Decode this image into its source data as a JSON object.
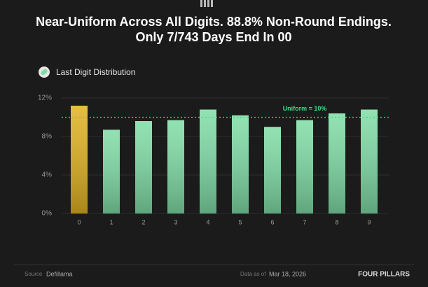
{
  "chart_data": {
    "type": "bar",
    "title_lines": [
      "Near-Uniform Across All Digits. 88.8% Non-Round Endings.",
      "Only 7/743 Days End In 00"
    ],
    "legend_label": "Last Digit Distribution",
    "categories": [
      "0",
      "1",
      "2",
      "3",
      "4",
      "5",
      "6",
      "7",
      "8",
      "9"
    ],
    "values": [
      11.2,
      8.7,
      9.6,
      9.7,
      10.8,
      10.2,
      9.0,
      9.7,
      10.4,
      10.8
    ],
    "colors": [
      "#e0b21f",
      "#7fdca6",
      "#7fdca6",
      "#7fdca6",
      "#7fdca6",
      "#7fdca6",
      "#7fdca6",
      "#7fdca6",
      "#7fdca6",
      "#7fdca6"
    ],
    "ylim": [
      0,
      12
    ],
    "yticks": [
      {
        "value": 0,
        "label": "0%"
      },
      {
        "value": 4,
        "label": "4%"
      },
      {
        "value": 8,
        "label": "8%"
      },
      {
        "value": 12,
        "label": "12%"
      }
    ],
    "grid": true,
    "reference_line": {
      "value": 10,
      "label": "Uniform = 10%",
      "color": "#3ddc84"
    },
    "footer": {
      "source_label": "Source",
      "source": "Defillama",
      "date_label": "Data as of",
      "date": "Mar 18, 2026",
      "brand": "FOUR PILLARS"
    }
  }
}
